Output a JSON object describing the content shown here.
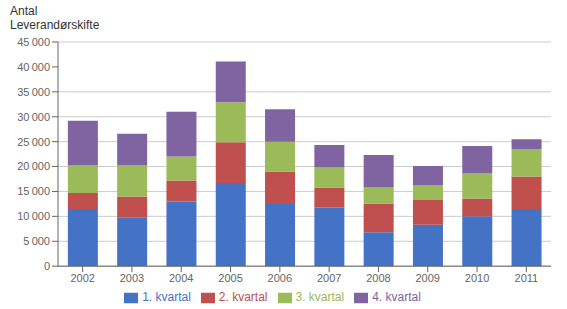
{
  "chart_data": {
    "type": "bar",
    "title": "Antal",
    "subtitle": "Leverandørskifte",
    "categories": [
      "2002",
      "2003",
      "2004",
      "2005",
      "2006",
      "2007",
      "2008",
      "2009",
      "2010",
      "2011"
    ],
    "series": [
      {
        "name": "1. kvartal",
        "color": "#4472c4",
        "values": [
          11500,
          9800,
          13000,
          16700,
          12500,
          11800,
          6800,
          8300,
          10000,
          11500
        ]
      },
      {
        "name": "2. kvartal",
        "color": "#c0504d",
        "values": [
          3200,
          4200,
          4200,
          8200,
          6500,
          4000,
          5800,
          5000,
          3600,
          6500
        ]
      },
      {
        "name": "3. kvartal",
        "color": "#9bbb59",
        "values": [
          5500,
          6200,
          4800,
          8000,
          6000,
          4000,
          3200,
          3000,
          5000,
          5500
        ]
      },
      {
        "name": "4. kvartal",
        "color": "#8064a2",
        "values": [
          9000,
          6400,
          9000,
          8200,
          6500,
          4500,
          6500,
          3800,
          5500,
          2000
        ]
      }
    ],
    "ylim": [
      0,
      45000
    ],
    "yticks": [
      0,
      {
        "value": 5000,
        "label": "5 000"
      },
      {
        "value": 10000,
        "label": "10 000"
      },
      {
        "value": 15000,
        "label": "15 000"
      },
      {
        "value": 20000,
        "label": "20 000"
      },
      {
        "value": 25000,
        "label": "25 000"
      },
      {
        "value": 30000,
        "label": "30 000"
      },
      {
        "value": 35000,
        "label": "35 000"
      },
      {
        "value": 40000,
        "label": "40 000"
      },
      {
        "value": 45000,
        "label": "45 000"
      }
    ],
    "stacked": true,
    "grid": true,
    "legend": "bottom"
  }
}
